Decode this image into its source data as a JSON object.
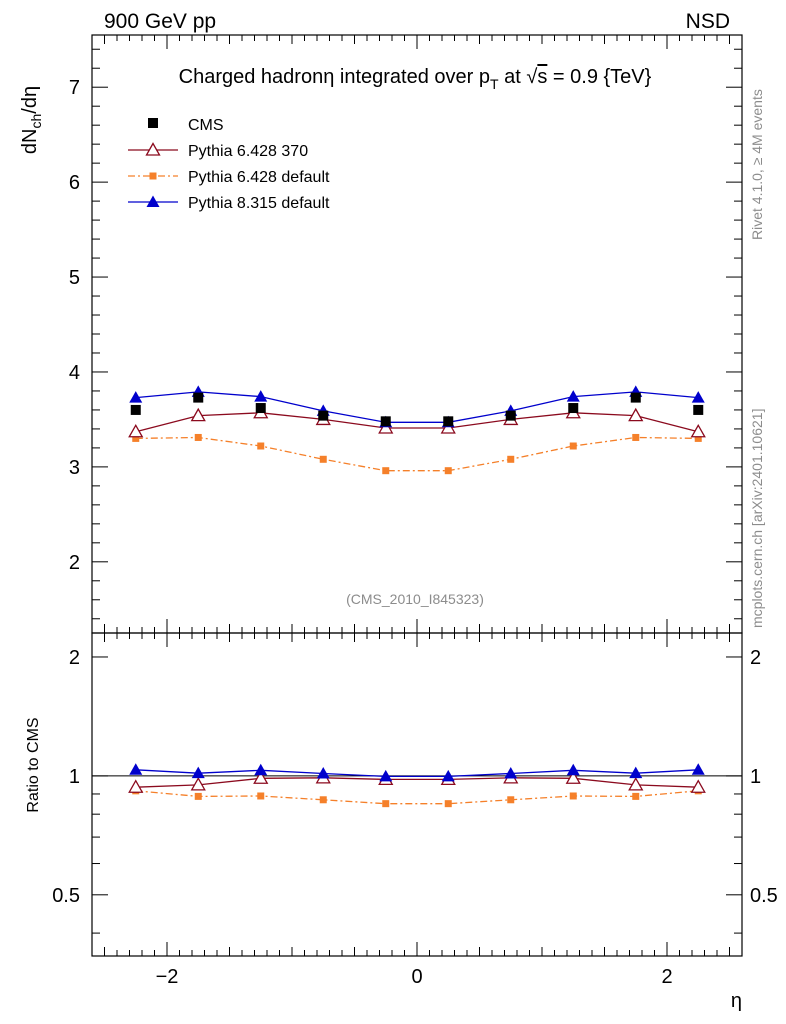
{
  "header": {
    "left": "900 GeV pp",
    "right": "NSD"
  },
  "side_labels": {
    "rivet": "Rivet 4.1.0, ≥ 4M events",
    "mcplots": "mcplots.cern.ch [arXiv:2401.10621]"
  },
  "colors": {
    "cms": "#000000",
    "py370": "#8b0a1e",
    "pydef": "#f5802a",
    "py8": "#0000cc",
    "watermark": "#8c8c8c"
  },
  "chart_data": {
    "type": "line",
    "title": {
      "prefix": "Charged hadron",
      "eta": "η",
      "mid": " integrated over p",
      "sub": "T",
      "at": " at ",
      "sqrt": "√",
      "s": "s",
      "rest": " = 0.9 {TeV}"
    },
    "watermark": "(CMS_2010_I845323)",
    "xlabel": "η",
    "ylabel": {
      "main": "dN",
      "sub": "ch",
      "rest": "/dη"
    },
    "ratio_ylabel": "Ratio to CMS",
    "xlim": [
      -2.6,
      2.6
    ],
    "ylim": [
      1.25,
      7.55
    ],
    "ratio_ylim": [
      0.35,
      2.3
    ],
    "xticks": [
      -2,
      0,
      2
    ],
    "xtick_labels": [
      "−2",
      "0",
      "2"
    ],
    "yticks": [
      2,
      3,
      4,
      5,
      6,
      7
    ],
    "ytick_labels": [
      "2",
      "3",
      "4",
      "5",
      "6",
      "7"
    ],
    "ratio_yticks": [
      0.5,
      1,
      2
    ],
    "ratio_ytick_labels": [
      "0.5",
      "1",
      "2"
    ],
    "x": [
      -2.25,
      -1.75,
      -1.25,
      -0.75,
      -0.25,
      0.25,
      0.75,
      1.25,
      1.75,
      2.25
    ],
    "series": [
      {
        "key": "cms",
        "name": "CMS",
        "style": "data",
        "values": [
          3.6,
          3.73,
          3.62,
          3.54,
          3.48,
          3.48,
          3.54,
          3.62,
          3.73,
          3.6
        ]
      },
      {
        "key": "py370",
        "name": "Pythia 6.428 370",
        "style": "open-triangle",
        "values": [
          3.37,
          3.54,
          3.57,
          3.5,
          3.41,
          3.41,
          3.5,
          3.57,
          3.54,
          3.37
        ]
      },
      {
        "key": "pydef",
        "name": "Pythia 6.428 default",
        "style": "dashdot-square",
        "values": [
          3.3,
          3.31,
          3.22,
          3.08,
          2.96,
          2.96,
          3.08,
          3.22,
          3.31,
          3.3
        ]
      },
      {
        "key": "py8",
        "name": "Pythia 8.315 default",
        "style": "filled-triangle",
        "values": [
          3.73,
          3.79,
          3.74,
          3.59,
          3.47,
          3.47,
          3.59,
          3.74,
          3.79,
          3.73
        ]
      }
    ]
  }
}
